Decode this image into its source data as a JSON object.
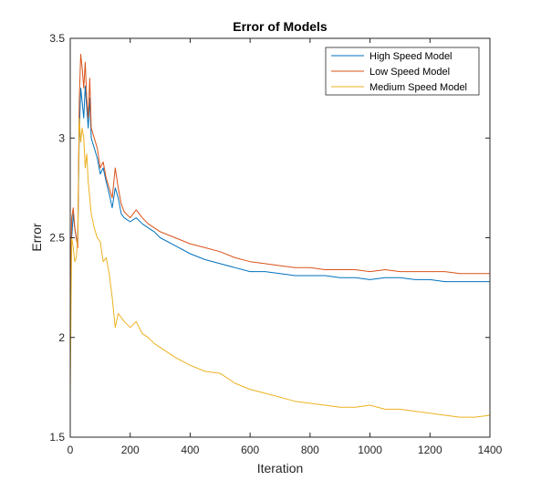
{
  "chart_data": {
    "type": "line",
    "title": "Error of Models",
    "xlabel": "Iteration",
    "ylabel": "Error",
    "xlim": [
      0,
      1400
    ],
    "ylim": [
      1.5,
      3.5
    ],
    "xticks": [
      "0",
      "200",
      "400",
      "600",
      "800",
      "1000",
      "1200",
      "1400"
    ],
    "yticks": [
      "1.5",
      "2",
      "2.5",
      "3",
      "3.5"
    ],
    "grid": false,
    "legend_position": "top-right",
    "series": [
      {
        "name": "High Speed Model",
        "color": "#0072BD",
        "x": [
          0,
          5,
          10,
          15,
          20,
          25,
          30,
          35,
          40,
          45,
          50,
          55,
          60,
          65,
          70,
          80,
          90,
          100,
          110,
          120,
          130,
          140,
          150,
          160,
          170,
          180,
          200,
          220,
          240,
          260,
          280,
          300,
          350,
          400,
          450,
          500,
          550,
          600,
          650,
          700,
          750,
          800,
          850,
          900,
          950,
          1000,
          1050,
          1100,
          1150,
          1200,
          1250,
          1300,
          1350,
          1400
        ],
        "y": [
          2.12,
          2.5,
          2.62,
          2.55,
          2.5,
          2.48,
          3.02,
          3.25,
          3.18,
          3.1,
          3.26,
          3.15,
          3.05,
          3.2,
          3.0,
          2.95,
          2.9,
          2.82,
          2.85,
          2.78,
          2.72,
          2.65,
          2.75,
          2.7,
          2.62,
          2.6,
          2.58,
          2.6,
          2.57,
          2.55,
          2.53,
          2.5,
          2.46,
          2.42,
          2.39,
          2.37,
          2.35,
          2.33,
          2.33,
          2.32,
          2.31,
          2.31,
          2.31,
          2.3,
          2.3,
          2.29,
          2.3,
          2.3,
          2.29,
          2.29,
          2.28,
          2.28,
          2.28,
          2.28
        ]
      },
      {
        "name": "Low Speed Model",
        "color": "#D95319",
        "x": [
          0,
          5,
          10,
          15,
          20,
          25,
          30,
          35,
          40,
          45,
          50,
          55,
          60,
          65,
          70,
          80,
          90,
          100,
          110,
          120,
          130,
          140,
          150,
          160,
          170,
          180,
          200,
          220,
          240,
          260,
          280,
          300,
          350,
          400,
          450,
          500,
          550,
          600,
          650,
          700,
          750,
          800,
          850,
          900,
          950,
          1000,
          1050,
          1100,
          1150,
          1200,
          1250,
          1300,
          1350,
          1400
        ],
        "y": [
          2.2,
          2.6,
          2.65,
          2.55,
          2.5,
          2.45,
          3.2,
          3.42,
          3.35,
          3.25,
          3.38,
          3.2,
          3.1,
          3.3,
          3.05,
          3.0,
          2.95,
          2.85,
          2.88,
          2.8,
          2.75,
          2.7,
          2.85,
          2.75,
          2.67,
          2.63,
          2.6,
          2.64,
          2.6,
          2.57,
          2.55,
          2.53,
          2.5,
          2.47,
          2.45,
          2.43,
          2.4,
          2.38,
          2.37,
          2.36,
          2.35,
          2.35,
          2.34,
          2.34,
          2.34,
          2.33,
          2.34,
          2.33,
          2.33,
          2.33,
          2.33,
          2.32,
          2.32,
          2.32
        ]
      },
      {
        "name": "Medium Speed Model",
        "color": "#EDB120",
        "x": [
          0,
          5,
          10,
          15,
          20,
          25,
          30,
          35,
          40,
          45,
          50,
          55,
          60,
          65,
          70,
          80,
          90,
          100,
          110,
          120,
          130,
          140,
          150,
          160,
          170,
          180,
          200,
          220,
          240,
          260,
          280,
          300,
          350,
          400,
          450,
          500,
          550,
          600,
          650,
          700,
          750,
          800,
          850,
          900,
          950,
          1000,
          1050,
          1100,
          1150,
          1200,
          1250,
          1300,
          1350,
          1400
        ],
        "y": [
          1.72,
          2.5,
          2.45,
          2.38,
          2.4,
          2.5,
          3.1,
          2.98,
          3.05,
          3.0,
          2.85,
          2.92,
          2.78,
          2.7,
          2.62,
          2.55,
          2.5,
          2.48,
          2.38,
          2.4,
          2.32,
          2.2,
          2.05,
          2.12,
          2.1,
          2.08,
          2.05,
          2.08,
          2.02,
          2.0,
          1.97,
          1.95,
          1.9,
          1.86,
          1.83,
          1.82,
          1.77,
          1.74,
          1.72,
          1.7,
          1.68,
          1.67,
          1.66,
          1.65,
          1.65,
          1.66,
          1.64,
          1.64,
          1.63,
          1.62,
          1.61,
          1.6,
          1.6,
          1.61
        ]
      }
    ]
  }
}
